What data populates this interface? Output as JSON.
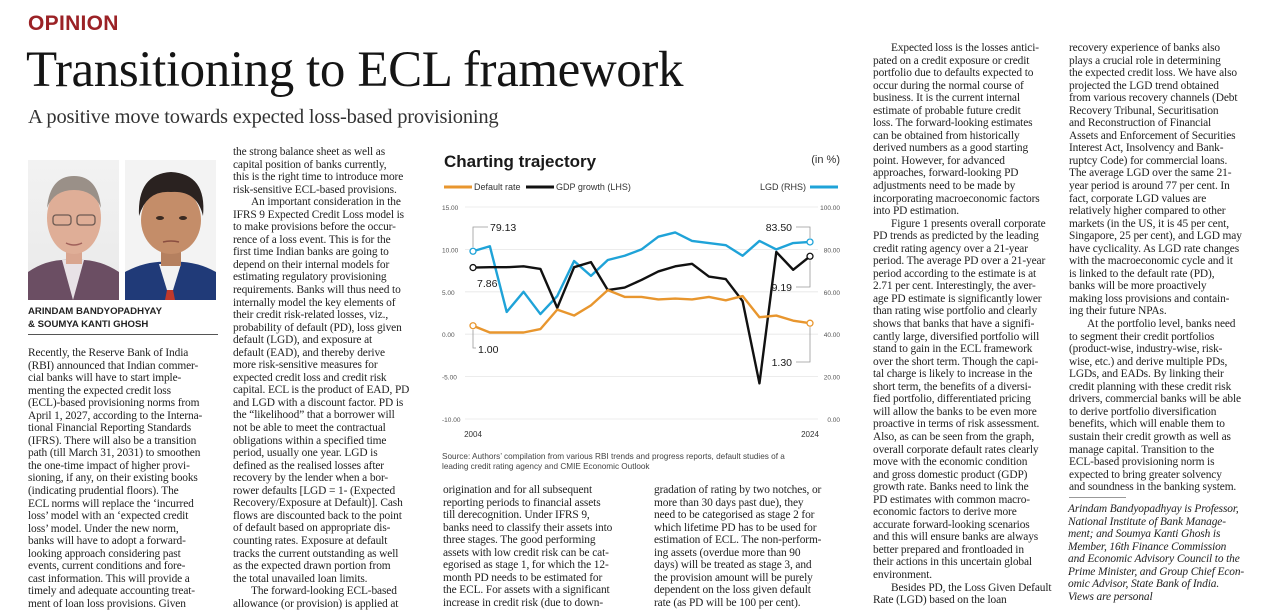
{
  "section": "OPINION",
  "headline": "Transitioning to ECL framework",
  "deck": "A positive move towards expected loss-based provisioning",
  "byline": [
    "ARINDAM BANDYOPADHYAY",
    "& SOUMYA KANTI GHOSH"
  ],
  "columns": [
    {
      "lines": [
        "Recently, the Reserve Bank of India",
        "(RBI) announced that Indian commer-",
        "cial banks will have to start imple-",
        "menting the expected credit loss",
        "(ECL)-based provisioning norms from",
        "April 1, 2027, according to the Interna-",
        "tional Financial Reporting Standards",
        "(IFRS). There will also be a transition",
        "path (till March 31, 2031) to smoothen",
        "the one-time impact of higher provi-",
        "sioning, if any, on their existing books",
        "(indicating prudential floors). The",
        "ECL norms will replace the ‘incurred",
        "loss’ model with an ‘expected credit",
        "loss’ model. Under the new norm,",
        "banks will have to adopt a forward-",
        "looking approach considering past",
        "events, current conditions and fore-",
        "cast information. This will provide a",
        "timely and adequate accounting treat-",
        "ment of loan loss provisions. Given"
      ]
    },
    {
      "lines": [
        "the strong balance sheet as well as",
        "capital position of banks currently,",
        "this is the right time to introduce more",
        "risk-sensitive ECL-based provisions.",
        "An important consideration in the",
        "IFRS 9 Expected Credit Loss model is",
        "to make provisions before the occur-",
        "rence of a loss event. This is for the",
        "first time Indian banks are going to",
        "depend on their internal models for",
        "estimating regulatory provisioning",
        "requirements. Banks will thus need to",
        "internally model the key elements of",
        "their credit risk-related losses, viz.,",
        "probability of default (PD), loss given",
        "default (LGD), and exposure at",
        "default (EAD), and thereby derive",
        "more risk-sensitive measures for",
        "expected credit loss and credit risk",
        "capital. ECL is the product of EAD, PD",
        "and LGD with a discount factor. PD is",
        "the “likelihood” that a borrower will",
        "not be able to meet the contractual",
        "obligations within a specified time",
        "period, usually one year. LGD is",
        "defined as the realised losses after",
        "recovery by the lender when a bor-",
        "rower defaults [LGD = 1- (Expected",
        "Recovery/Exposure at Default)]. Cash",
        "flows are discounted back to the point",
        "of default based on appropriate dis-",
        "counting rates. Exposure at default",
        "tracks the current outstanding as well",
        "as the expected drawn portion from",
        "the total unavailed loan limits.",
        "The forward-looking ECL-based",
        "allowance (or provision) is applied at"
      ]
    },
    {
      "lines": [
        "origination and for all subsequent",
        "reporting periods to financial assets",
        "till derecognition. Under IFRS 9,",
        "banks need to classify their assets into",
        "three stages. The good performing",
        "assets with low credit risk can be cat-",
        "egorised as stage 1, for which the 12-",
        "month PD needs to be estimated for",
        "the ECL. For assets with a significant",
        "increase in credit risk (due to down-"
      ]
    },
    {
      "lines": [
        "gradation of rating by two notches, or",
        "more than 30 days past due), they",
        "need to be categorised as stage 2 for",
        "which lifetime PD has to be used for",
        "estimation of ECL. The non-perform-",
        "ing assets (overdue more than 90",
        "days) will be treated as stage 3, and",
        "the provision amount will be purely",
        "dependent on the loss given default",
        "rate (as PD will be 100 per cent)."
      ]
    },
    {
      "lines": [
        "Expected loss is the losses antici-",
        "pated on a credit exposure or credit",
        "portfolio due to defaults expected to",
        "occur during the normal course of",
        "business. It is the current internal",
        "estimate of probable future credit",
        "loss. The forward-looking estimates",
        "can be obtained from historically",
        "derived numbers as a good starting",
        "point. However, for advanced",
        "approaches, forward-looking PD",
        "adjustments need to be made by",
        "incorporating macroeconomic factors",
        "into PD estimation.",
        "Figure 1 presents overall corporate",
        "PD trends as predicted by the leading",
        "credit rating agency over a 21-year",
        "period. The average PD over a 21-year",
        "period according to the estimate is at",
        "2.71 per cent. Interestingly, the aver-",
        "age PD estimate is significantly lower",
        "than rating wise portfolio and clearly",
        "shows that banks that have a signifi-",
        "cantly large, diversified portfolio will",
        "stand to gain in the ECL framework",
        "over the short term. Though the capi-",
        "tal charge is likely to increase in the",
        "short term, the benefits of a diversi-",
        "fied portfolio, differentiated pricing",
        "will allow the banks to be even more",
        "proactive in terms of risk assessment.",
        "Also, as can be seen from the graph,",
        "overall corporate default rates clearly",
        "move with the economic condition",
        "and gross domestic product (GDP)",
        "growth rate. Banks need to link the",
        "PD estimates with common macro-",
        "economic factors to derive more",
        "accurate forward-looking scenarios",
        "and this will ensure banks are always",
        "better prepared and frontloaded in",
        "their actions in this uncertain global",
        "environment.",
        "Besides PD, the Loss Given Default",
        "Rate (LGD) based on the loan"
      ]
    },
    {
      "lines": [
        "recovery experience of banks also",
        "plays a crucial role in determining",
        "the expected credit loss. We have also",
        "projected the LGD trend obtained",
        "from various recovery channels (Debt",
        "Recovery Tribunal, Securitisation",
        "and Reconstruction of Financial",
        "Assets and Enforcement of Securities",
        "Interest Act, Insolvency and Bank-",
        "ruptcy Code) for commercial loans.",
        "The average LGD over the same 21-",
        "year period is around 77 per cent. In",
        "fact, corporate LGD values are",
        "relatively higher compared to other",
        "markets (in the US, it is 45 per cent,",
        "Singapore, 25 per cent), and LGD may",
        "have cyclicality. As LGD rate changes",
        "with the macroeconomic cycle and it",
        "is linked to the default rate (PD),",
        "banks will be more proactively",
        "making loss provisions and contain-",
        "ing their future NPAs.",
        "At the portfolio level, banks need",
        "to segment their credit portfolios",
        "(product-wise, industry-wise, risk-",
        "wise, etc.) and derive multiple PDs,",
        "LGDs, and EADs. By linking their",
        "credit planning with these credit risk",
        "drivers, commercial banks will be able",
        "to derive portfolio diversification",
        "benefits, which will enable them to",
        "sustain their credit growth as well as",
        "manage capital. Transition to the",
        "ECL-based provisioning norm is",
        "expected to bring greater solvency",
        "and soundness in the banking system."
      ]
    }
  ],
  "bio": [
    "Arindam Bandyopadhyay is Professor,",
    "National Institute of Bank Manage-",
    "ment; and Soumya Kanti Ghosh is",
    "Member, 16th Finance Commission",
    "and Economic Advisory Council to the",
    "Prime Minister, and Group Chief Econ-",
    "omic Advisor, State Bank of India.",
    "Views are personal"
  ],
  "colors": {
    "kicker": "#9b2226",
    "default_rate": "#e8962e",
    "gdp": "#111111",
    "lgd": "#1fa3d8"
  },
  "chart_data": {
    "type": "line",
    "title": "Charting trajectory",
    "unit_note": "(in %)",
    "x": [
      2004,
      2005,
      2006,
      2007,
      2008,
      2009,
      2010,
      2011,
      2012,
      2013,
      2014,
      2015,
      2016,
      2017,
      2018,
      2019,
      2020,
      2021,
      2022,
      2023,
      2024
    ],
    "x_tick_labels": [
      "2004",
      "2024"
    ],
    "left_axis": {
      "ylim": [
        -10,
        15
      ],
      "ticks": [
        "15.00",
        "10.00",
        "5.00",
        "0.00",
        "-5.00",
        "-10.00"
      ]
    },
    "right_axis": {
      "ylim": [
        0,
        100
      ],
      "ticks": [
        "100.00",
        "80.00",
        "60.00",
        "40.00",
        "20.00",
        "0.00"
      ]
    },
    "series": [
      {
        "name": "Default rate",
        "axis": "left",
        "color": "#e8962e",
        "values": [
          1.0,
          0.2,
          0.2,
          0.2,
          0.6,
          2.9,
          2.2,
          3.4,
          5.2,
          4.4,
          4.4,
          4.1,
          4.2,
          4.1,
          4.4,
          4.0,
          4.5,
          2.0,
          2.2,
          1.6,
          1.3
        ]
      },
      {
        "name": "GDP growth (LHS)",
        "axis": "left",
        "color": "#111111",
        "values": [
          7.86,
          7.9,
          7.9,
          8.0,
          7.7,
          3.1,
          7.9,
          8.5,
          5.2,
          5.5,
          6.4,
          7.4,
          8.0,
          8.3,
          6.8,
          6.5,
          3.9,
          -5.8,
          9.7,
          7.6,
          9.19
        ]
      },
      {
        "name": "LGD (RHS)",
        "axis": "right",
        "color": "#1fa3d8",
        "values": [
          79.13,
          81.5,
          50.5,
          60,
          49.5,
          58,
          74.5,
          67.5,
          75,
          77,
          80,
          86,
          88,
          84,
          83,
          82,
          77,
          84,
          80,
          83,
          83.5
        ]
      }
    ],
    "annotations": {
      "lgd_start": "79.13",
      "gdp_start": "7.86",
      "dr_start": "1.00",
      "lgd_end": "83.50",
      "gdp_end": "9.19",
      "dr_end": "1.30"
    },
    "legend": "top",
    "grid": true,
    "source": [
      "Source: Authors’ compilation from various RBI trends and progress reports, default studies of a",
      "leading credit rating agency and CMIE Economic Outlook"
    ]
  }
}
